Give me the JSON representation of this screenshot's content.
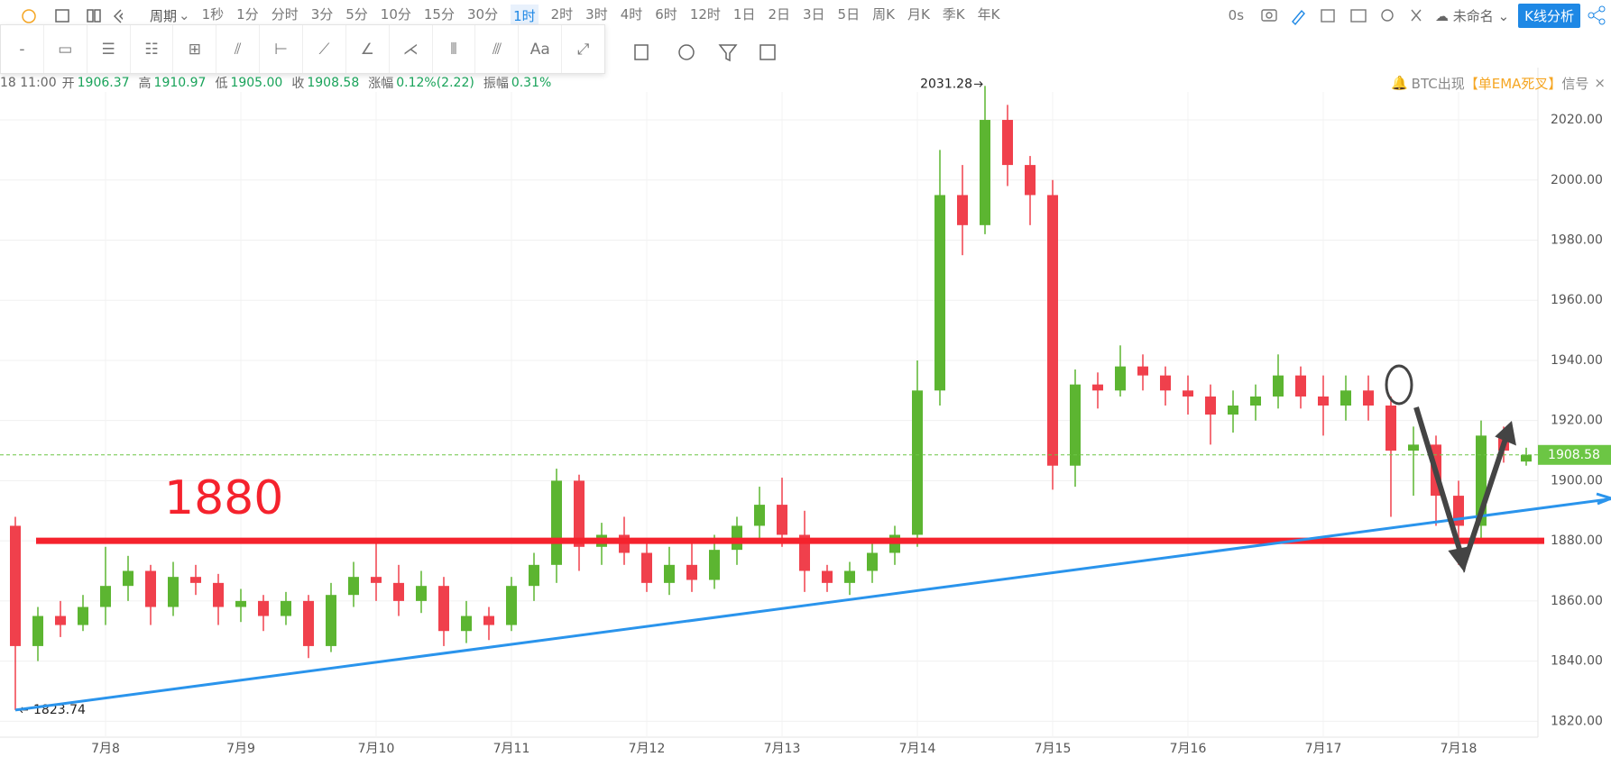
{
  "toolbar": {
    "period": "周期",
    "intervals": [
      "1秒",
      "1分",
      "分时",
      "3分",
      "5分",
      "10分",
      "15分",
      "30分",
      "1时",
      "2时",
      "3时",
      "4时",
      "6时",
      "12时",
      "1日",
      "2日",
      "3日",
      "5日",
      "周K",
      "月K",
      "季K",
      "年K"
    ],
    "active_index": 8,
    "timer": "0s",
    "layout_name": "未命名",
    "analysis": "K线分析"
  },
  "drawing_tools": {
    "text_tool": "Aa"
  },
  "info": {
    "time": "18 11:00",
    "items": [
      {
        "label": "开",
        "value": "1906.37"
      },
      {
        "label": "高",
        "value": "1910.97"
      },
      {
        "label": "低",
        "value": "1905.00"
      },
      {
        "label": "收",
        "value": "1908.58"
      },
      {
        "label": "涨幅",
        "value": "0.12%(2.22)"
      },
      {
        "label": "振幅",
        "value": "0.31%"
      }
    ]
  },
  "signal": {
    "prefix": "BTC出现",
    "name": "【单EMA死叉】",
    "suffix": "信号"
  },
  "chart_data": {
    "type": "candlestick",
    "categories": [
      null,
      null,
      null,
      null,
      "7月8",
      null,
      null,
      null,
      null,
      null,
      "7月9",
      null,
      null,
      null,
      null,
      null,
      "7月10",
      null,
      null,
      null,
      null,
      null,
      "7月11",
      null,
      null,
      null,
      null,
      null,
      "7月12",
      null,
      null,
      null,
      null,
      null,
      "7月13",
      null,
      null,
      null,
      null,
      null,
      "7月14",
      null,
      null,
      null,
      null,
      null,
      "7月15",
      null,
      null,
      null,
      null,
      null,
      "7月16",
      null,
      null,
      null,
      null,
      null,
      "7月17",
      null,
      null,
      null,
      null,
      null,
      "7月18",
      null,
      null,
      null
    ],
    "open": [
      1885,
      1845,
      1855,
      1852,
      1858,
      1865,
      1870,
      1858,
      1868,
      1866,
      1858,
      1860,
      1855,
      1860,
      1845,
      1862,
      1868,
      1866,
      1860,
      1865,
      1850,
      1855,
      1852,
      1865,
      1872,
      1900,
      1878,
      1882,
      1876,
      1866,
      1872,
      1867,
      1877,
      1885,
      1892,
      1882,
      1870,
      1866,
      1870,
      1876,
      1882,
      1930,
      1995,
      1985,
      2020,
      2005,
      1995,
      1905,
      1932,
      1930,
      1938,
      1935,
      1930,
      1928,
      1922,
      1925,
      1928,
      1935,
      1928,
      1925,
      1930,
      1925,
      1910,
      1912,
      1895,
      1885,
      1915,
      1906.37
    ],
    "high": [
      1888,
      1858,
      1860,
      1862,
      1878,
      1875,
      1872,
      1873,
      1872,
      1869,
      1864,
      1862,
      1863,
      1862,
      1866,
      1873,
      1880,
      1872,
      1870,
      1868,
      1860,
      1858,
      1868,
      1876,
      1904,
      1902,
      1886,
      1888,
      1880,
      1878,
      1880,
      1882,
      1888,
      1898,
      1901,
      1890,
      1872,
      1873,
      1880,
      1885,
      1940,
      2010,
      2005,
      2031.28,
      2025,
      2008,
      2000,
      1937,
      1936,
      1945,
      1942,
      1938,
      1935,
      1932,
      1930,
      1932,
      1942,
      1938,
      1935,
      1935,
      1935,
      1928,
      1918,
      1915,
      1900,
      1920,
      1918,
      1910.97
    ],
    "low": [
      1823.74,
      1840,
      1848,
      1850,
      1852,
      1860,
      1852,
      1855,
      1862,
      1852,
      1853,
      1850,
      1852,
      1841,
      1843,
      1858,
      1860,
      1855,
      1856,
      1845,
      1846,
      1847,
      1850,
      1860,
      1866,
      1870,
      1872,
      1872,
      1863,
      1862,
      1863,
      1864,
      1872,
      1880,
      1878,
      1863,
      1863,
      1862,
      1866,
      1872,
      1878,
      1925,
      1975,
      1982,
      1998,
      1985,
      1897,
      1898,
      1924,
      1928,
      1930,
      1925,
      1922,
      1912,
      1916,
      1920,
      1924,
      1924,
      1915,
      1920,
      1920,
      1888,
      1895,
      1885,
      1872,
      1880,
      1906,
      1905
    ],
    "close": [
      1845,
      1855,
      1852,
      1858,
      1865,
      1870,
      1858,
      1868,
      1866,
      1858,
      1860,
      1855,
      1860,
      1845,
      1862,
      1868,
      1866,
      1860,
      1865,
      1850,
      1855,
      1852,
      1865,
      1872,
      1900,
      1878,
      1882,
      1876,
      1866,
      1872,
      1867,
      1877,
      1885,
      1892,
      1882,
      1870,
      1866,
      1870,
      1876,
      1882,
      1930,
      1995,
      1985,
      2020,
      2005,
      1995,
      1905,
      1932,
      1930,
      1938,
      1935,
      1930,
      1928,
      1922,
      1925,
      1928,
      1935,
      1928,
      1925,
      1930,
      1925,
      1910,
      1912,
      1895,
      1885,
      1915,
      1910,
      1908.58
    ],
    "up_color": "#5cb531",
    "down_color": "#f0404c",
    "ylim": [
      1815,
      2035
    ],
    "yticks": [
      {
        "value": 1820,
        "label": "1820.00"
      },
      {
        "value": 1840,
        "label": "1840.00"
      },
      {
        "value": 1860,
        "label": "1860.00"
      },
      {
        "value": 1880,
        "label": "1880.00"
      },
      {
        "value": 1900,
        "label": "1900.00"
      },
      {
        "value": 1920,
        "label": "1920.00"
      },
      {
        "value": 1940,
        "label": "1940.00"
      },
      {
        "value": 1960,
        "label": "1960.00"
      },
      {
        "value": 1980,
        "label": "1980.00"
      },
      {
        "value": 2000,
        "label": "2000.00"
      },
      {
        "value": 2020,
        "label": "2020.00"
      }
    ],
    "grid": true,
    "hline": {
      "value": 1880,
      "color": "#f5222d"
    },
    "trendline": {
      "color": "#2a94ec",
      "points": [
        [
          0,
          1823.74
        ],
        [
          70.8,
          1894
        ]
      ]
    },
    "price_line_color": "#6cc644"
  }
}
